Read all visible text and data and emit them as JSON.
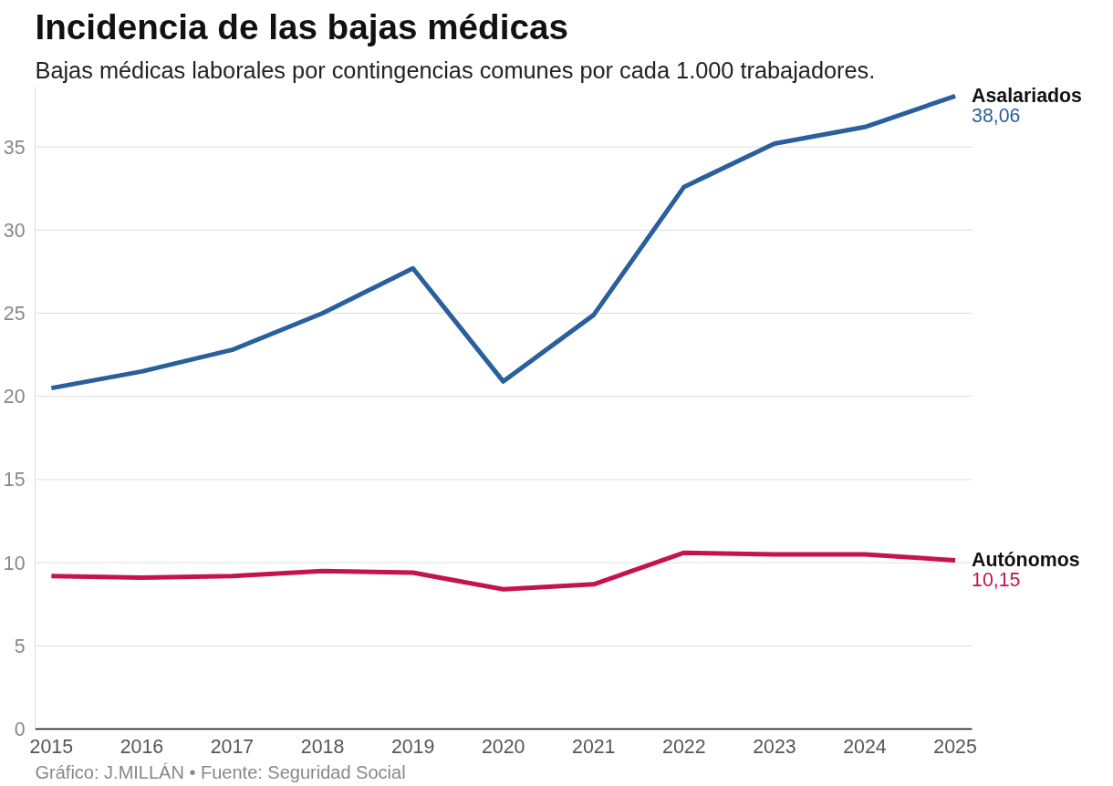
{
  "chart_data": {
    "type": "line",
    "title": "Incidencia de las bajas médicas",
    "subtitle": "Bajas médicas laborales por contingencias comunes por cada 1.000 trabajadores.",
    "x": [
      2015,
      2016,
      2017,
      2018,
      2019,
      2020,
      2021,
      2022,
      2023,
      2024,
      2025
    ],
    "series": [
      {
        "name": "Asalariados",
        "color": "#2a5f9e",
        "values": [
          20.5,
          21.5,
          22.8,
          25.0,
          27.7,
          20.9,
          24.9,
          32.6,
          35.2,
          36.2,
          38.06
        ],
        "value_labels": [
          null,
          null,
          null,
          null,
          null,
          null,
          null,
          null,
          null,
          null,
          "38,06"
        ]
      },
      {
        "name": "Autónomos",
        "color": "#c4134e",
        "values": [
          9.2,
          9.1,
          9.2,
          9.5,
          9.4,
          8.4,
          8.7,
          10.6,
          10.5,
          10.5,
          10.15
        ],
        "value_labels": [
          null,
          null,
          null,
          null,
          null,
          null,
          null,
          null,
          null,
          null,
          "10,15"
        ]
      }
    ],
    "xlim": [
      2014.82,
      2025.19
    ],
    "xticks": [
      2015,
      2016,
      2017,
      2018,
      2019,
      2020,
      2021,
      2022,
      2023,
      2024,
      2025
    ],
    "ylim": [
      0,
      38.6
    ],
    "yticks": [
      0,
      5,
      10,
      15,
      20,
      25,
      30,
      35
    ],
    "grid": "y",
    "legend": false,
    "marker": "none",
    "line_style": "solid",
    "annotations": [
      "Gráfico: J.MILLÁN • Fuente: Seguridad Social"
    ]
  }
}
